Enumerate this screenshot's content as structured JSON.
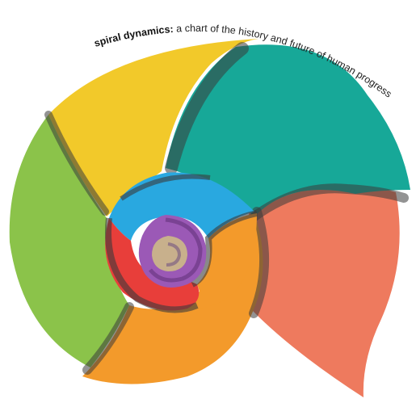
{
  "title": {
    "bold": "spiral dynamics:",
    "rest": " a chart of the history and future of human progress"
  },
  "palette": {
    "beige": "#C8B08C",
    "purple": "#9B59B6",
    "red": "#E83E3A",
    "blue": "#29A8E0",
    "orange": "#F39A2B",
    "green": "#8BC34A",
    "yellow": "#F2C92A",
    "teal": "#17A898",
    "coral": "#EE7A5E",
    "shadow": "#3A3A3A"
  }
}
